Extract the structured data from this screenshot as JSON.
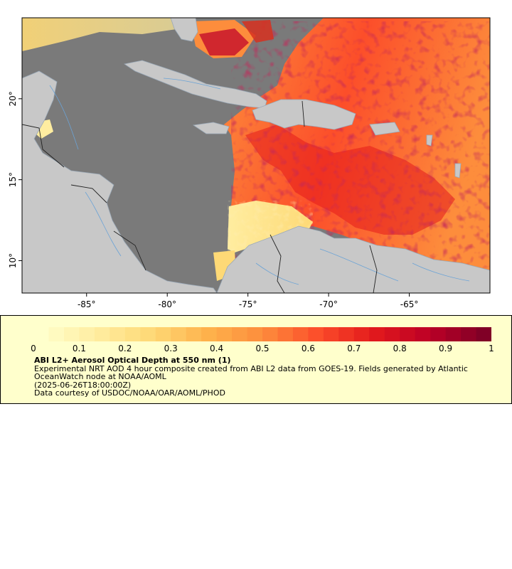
{
  "chart_data": {
    "type": "heatmap",
    "title": "ABI L2+ Aerosol Optical Depth at 550 nm (1)",
    "x_ticks": [
      "-85°",
      "-80°",
      "-75°",
      "-70°",
      "-65°"
    ],
    "y_ticks": [
      "20°",
      "15°",
      "10°"
    ],
    "xlim": [
      -89,
      -60
    ],
    "ylim": [
      8,
      25
    ],
    "colorbar": {
      "min": 0,
      "max": 1,
      "ticks": [
        "0",
        "0.1",
        "0.2",
        "0.3",
        "0.4",
        "0.5",
        "0.6",
        "0.7",
        "0.8",
        "0.9",
        "1"
      ],
      "colors": [
        "#ffffcc",
        "#ffeda0",
        "#fed976",
        "#feb24c",
        "#fd8d3c",
        "#fc4e2a",
        "#e31a1c",
        "#bd0026",
        "#800026"
      ]
    },
    "map_colors": {
      "water_nodata": "#7a7a7a",
      "land": "#c8c8c8",
      "rivers": "#6ba3d6",
      "borders": "#222222"
    }
  },
  "legend": {
    "title": "ABI L2+ Aerosol Optical Depth at 550 nm (1)",
    "description": "Experimental NRT AOD 4 hour composite created from ABI L2 data from GOES-19. Fields generated by Atlantic OceanWatch node at NOAA/AOML",
    "timestamp": "(2025-06-26T18:00:00Z)",
    "credit": "Data courtesy of USDOC/NOAA/OAR/AOML/PHOD"
  }
}
